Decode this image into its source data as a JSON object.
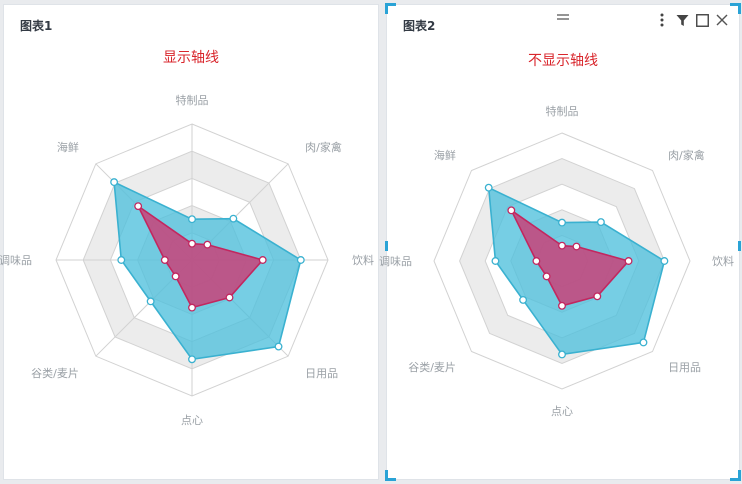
{
  "colors": {
    "series_a": "#4fc0dd",
    "series_a_line": "#3ab1d0",
    "series_b": "#c5477c",
    "series_b_line": "#c2275f",
    "subtitle": "#d9262c",
    "accent": "#2aa3d6"
  },
  "toolbar": {
    "more_icon": "more-vertical-icon",
    "filter_icon": "filter-icon",
    "maximize_icon": "maximize-icon",
    "close_icon": "close-icon",
    "drag_icon": "drag-handle-icon"
  },
  "charts": [
    {
      "title": "图表1",
      "subtitle": "显示轴线",
      "show_axis_lines": true,
      "selected": false
    },
    {
      "title": "图表2",
      "subtitle": "不显示轴线",
      "show_axis_lines": false,
      "selected": true
    }
  ],
  "chart_data": [
    {
      "type": "radar",
      "title": "图表1",
      "subtitle": "显示轴线",
      "indicators": [
        "特制品",
        "肉/家禽",
        "饮料",
        "日用品",
        "点心",
        "谷类/麦片",
        "调味品",
        "海鲜"
      ],
      "max": 100,
      "rings": 5,
      "split_area_alternating": true,
      "series": [
        {
          "values": [
            30,
            43,
            80,
            90,
            73,
            43,
            52,
            81
          ]
        },
        {
          "values": [
            12,
            16,
            52,
            39,
            35,
            17,
            20,
            56
          ]
        }
      ]
    },
    {
      "type": "radar",
      "title": "图表2",
      "subtitle": "不显示轴线",
      "indicators": [
        "特制品",
        "肉/家禽",
        "饮料",
        "日用品",
        "点心",
        "谷类/麦片",
        "调味品",
        "海鲜"
      ],
      "max": 100,
      "rings": 5,
      "split_area_alternating": true,
      "series": [
        {
          "values": [
            30,
            43,
            80,
            90,
            73,
            43,
            52,
            81
          ]
        },
        {
          "values": [
            12,
            16,
            52,
            39,
            35,
            17,
            20,
            56
          ]
        }
      ]
    }
  ]
}
